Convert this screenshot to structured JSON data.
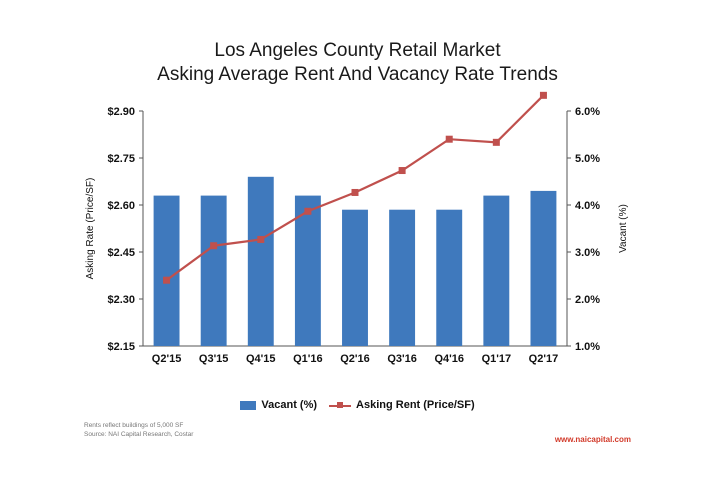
{
  "title_line1": "Los Angeles County Retail Market",
  "title_line2": "Asking Average Rent And Vacancy Rate Trends",
  "colors": {
    "bar": "#3f79bd",
    "line": "#c0504d"
  },
  "footnote_line1": "Rents reflect buildings of 5,000 SF",
  "footnote_line2": "Source: NAI Capital Research, Costar",
  "website": "www.naicapital.com",
  "chart_data": {
    "type": "bar",
    "categories": [
      "Q2'15",
      "Q3'15",
      "Q4'15",
      "Q1'16",
      "Q2'16",
      "Q3'16",
      "Q4'16",
      "Q1'17",
      "Q2'17"
    ],
    "series": [
      {
        "name": "Vacant (%)",
        "type": "bar",
        "axis": "right",
        "values": [
          4.2,
          4.2,
          4.6,
          4.2,
          3.9,
          3.9,
          3.9,
          4.2,
          4.3
        ]
      },
      {
        "name": "Asking Rent (Price/SF)",
        "type": "line",
        "axis": "left",
        "values": [
          2.36,
          2.47,
          2.49,
          2.58,
          2.64,
          2.71,
          2.81,
          2.8,
          2.95
        ]
      }
    ],
    "ylabel_left": "Asking Rate (Price/SF)",
    "ylabel_right": "Vacant (%)",
    "ylim_left": [
      2.15,
      2.9
    ],
    "yticks_left": [
      "$2.15",
      "$2.30",
      "$2.45",
      "$2.60",
      "$2.75",
      "$2.90"
    ],
    "ylim_right": [
      1.0,
      6.0
    ],
    "yticks_right": [
      "1.0%",
      "2.0%",
      "3.0%",
      "4.0%",
      "5.0%",
      "6.0%"
    ],
    "grid": false,
    "legend_position": "bottom"
  }
}
